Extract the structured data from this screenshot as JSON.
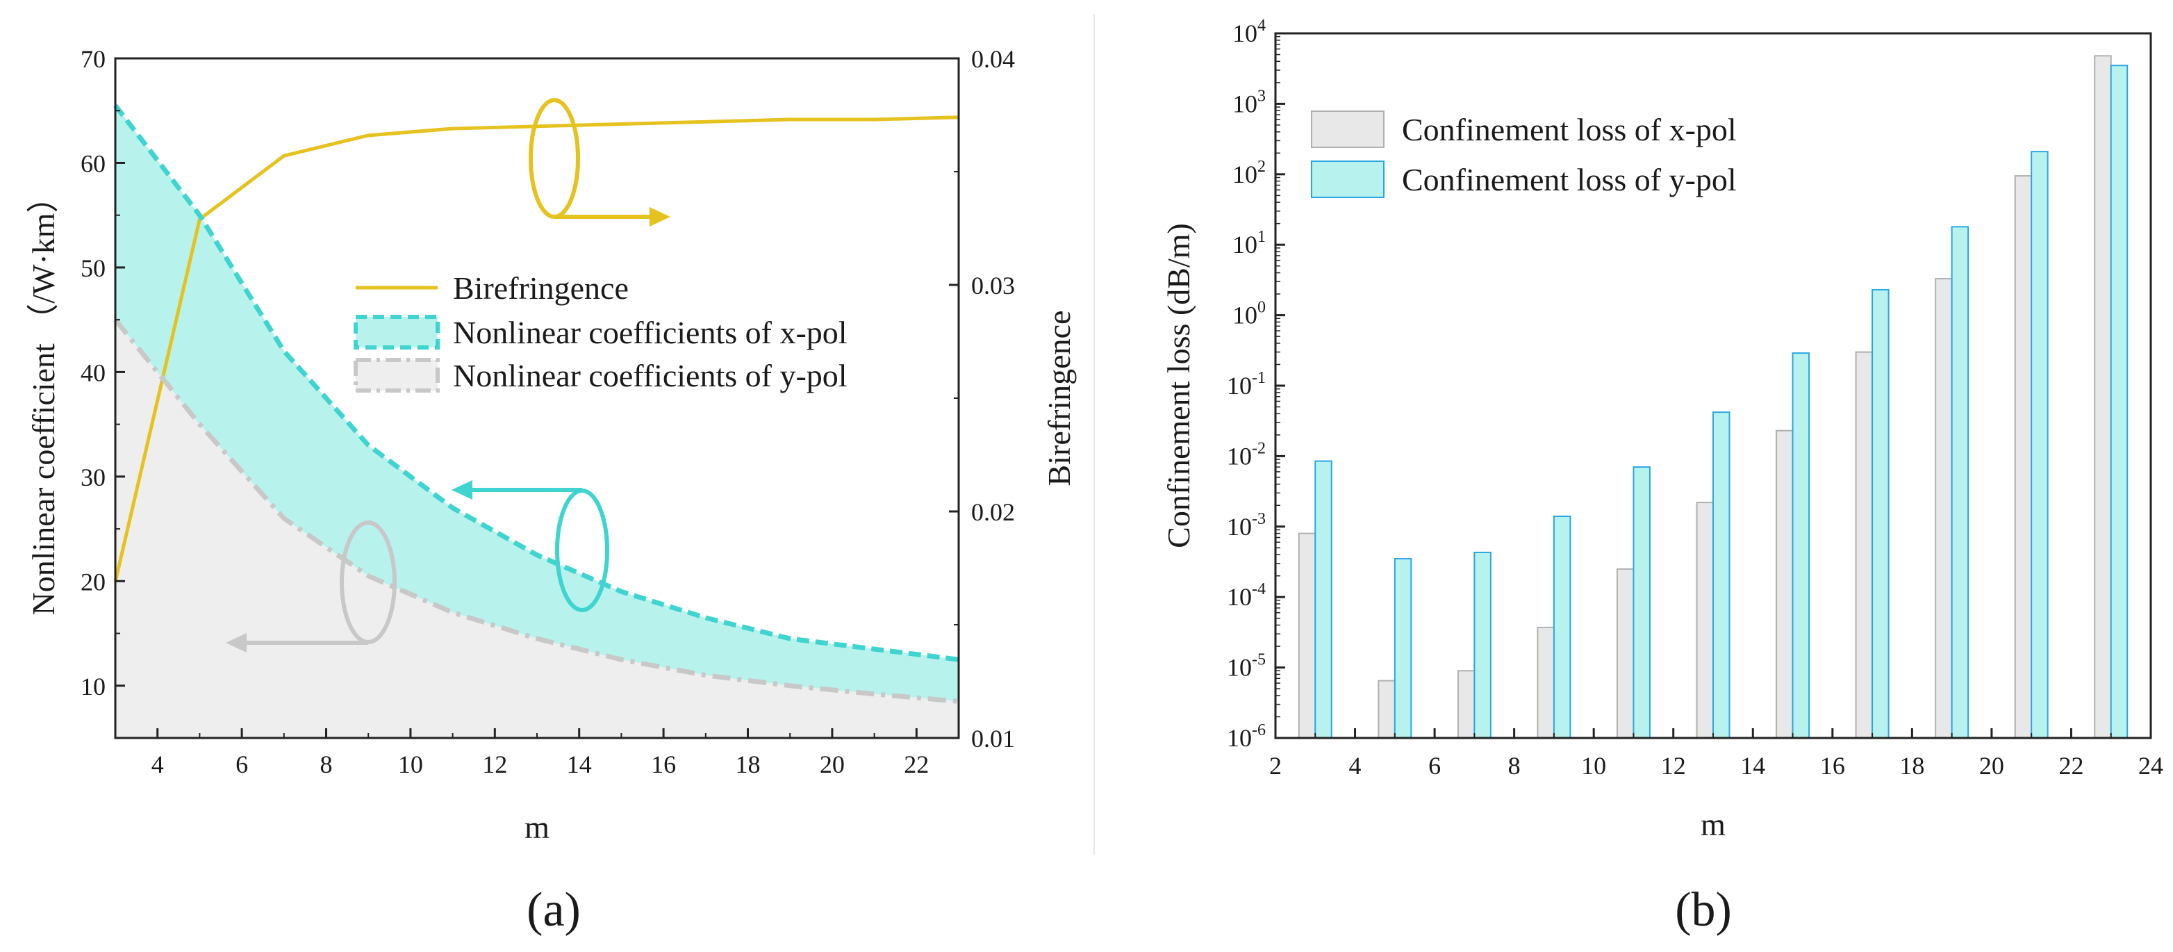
{
  "chart_data": [
    {
      "panel": "a",
      "type": "line",
      "caption": "(a)",
      "xlabel": "m",
      "ylabel": "Nonlinear coefficient （/W·km）",
      "y2label": "Birefringence",
      "xlim": [
        3,
        23
      ],
      "ylim": [
        5,
        70
      ],
      "y2lim": [
        0.01,
        0.04
      ],
      "xticks": [
        "4",
        "6",
        "8",
        "10",
        "12",
        "14",
        "16",
        "18",
        "20",
        "22"
      ],
      "yticks": [
        "10",
        "20",
        "30",
        "40",
        "50",
        "60",
        "70"
      ],
      "y2ticks": [
        "0.01",
        "0.02",
        "0.03",
        "0.04"
      ],
      "series": [
        {
          "name": "Birefringence",
          "axis": "right",
          "style": "solid",
          "color": "#e6c21e",
          "x": [
            3,
            5,
            7,
            9,
            11,
            13,
            15,
            17,
            19,
            21,
            23
          ],
          "values": [
            0.0169,
            0.0329,
            0.0357,
            0.0366,
            0.0369,
            0.037,
            0.0371,
            0.0372,
            0.0373,
            0.0373,
            0.0374
          ]
        },
        {
          "name": "Nonlinear coefficients of x-pol",
          "axis": "left",
          "style": "dashed",
          "color": "#3fd4d0",
          "fill": "#b8f2ec",
          "x": [
            3,
            5,
            7,
            9,
            11,
            13,
            15,
            17,
            19,
            21,
            23
          ],
          "values": [
            65.5,
            55,
            42,
            33,
            27,
            22.5,
            19,
            16.5,
            14.5,
            13.5,
            12.5
          ]
        },
        {
          "name": "Nonlinear coefficients of y-pol",
          "axis": "left",
          "style": "dashdot",
          "color": "#c8c8c8",
          "fill": "#eeeeee",
          "x": [
            3,
            5,
            7,
            9,
            11,
            13,
            15,
            17,
            19,
            21,
            23
          ],
          "values": [
            45,
            35,
            26,
            20.5,
            17,
            14.5,
            12.5,
            11,
            10,
            9.2,
            8.5
          ]
        }
      ]
    },
    {
      "panel": "b",
      "type": "bar",
      "caption": "(b)",
      "xlabel": "m",
      "ylabel": "Confinement loss (dB/m)",
      "yscale": "log",
      "xlim": [
        2,
        24
      ],
      "ylim": [
        1e-06,
        10000.0
      ],
      "xticks": [
        "2",
        "4",
        "6",
        "8",
        "10",
        "12",
        "14",
        "16",
        "18",
        "20",
        "22",
        "24"
      ],
      "yticks": [
        {
          "base": "10",
          "exp": "-6"
        },
        {
          "base": "10",
          "exp": "-5"
        },
        {
          "base": "10",
          "exp": "-4"
        },
        {
          "base": "10",
          "exp": "-3"
        },
        {
          "base": "10",
          "exp": "-2"
        },
        {
          "base": "10",
          "exp": "-1"
        },
        {
          "base": "10",
          "exp": "0"
        },
        {
          "base": "10",
          "exp": "1"
        },
        {
          "base": "10",
          "exp": "2"
        },
        {
          "base": "10",
          "exp": "3"
        },
        {
          "base": "10",
          "exp": "4"
        }
      ],
      "categories": [
        3,
        5,
        7,
        9,
        11,
        13,
        15,
        17,
        19,
        21,
        23
      ],
      "series": [
        {
          "name": "Confinement loss of x-pol",
          "color": "#e8e8e8",
          "edge": "#b0b0b0",
          "values": [
            0.0008,
            6.5e-06,
            9e-06,
            3.7e-05,
            0.00025,
            0.0022,
            0.023,
            0.3,
            3.3,
            95,
            4800
          ]
        },
        {
          "name": "Confinement loss of y-pol",
          "color": "#b8f2ef",
          "edge": "#2aa7e0",
          "values": [
            0.0085,
            0.00035,
            0.00043,
            0.0014,
            0.007,
            0.042,
            0.29,
            2.3,
            18,
            210,
            3500
          ]
        }
      ]
    }
  ]
}
